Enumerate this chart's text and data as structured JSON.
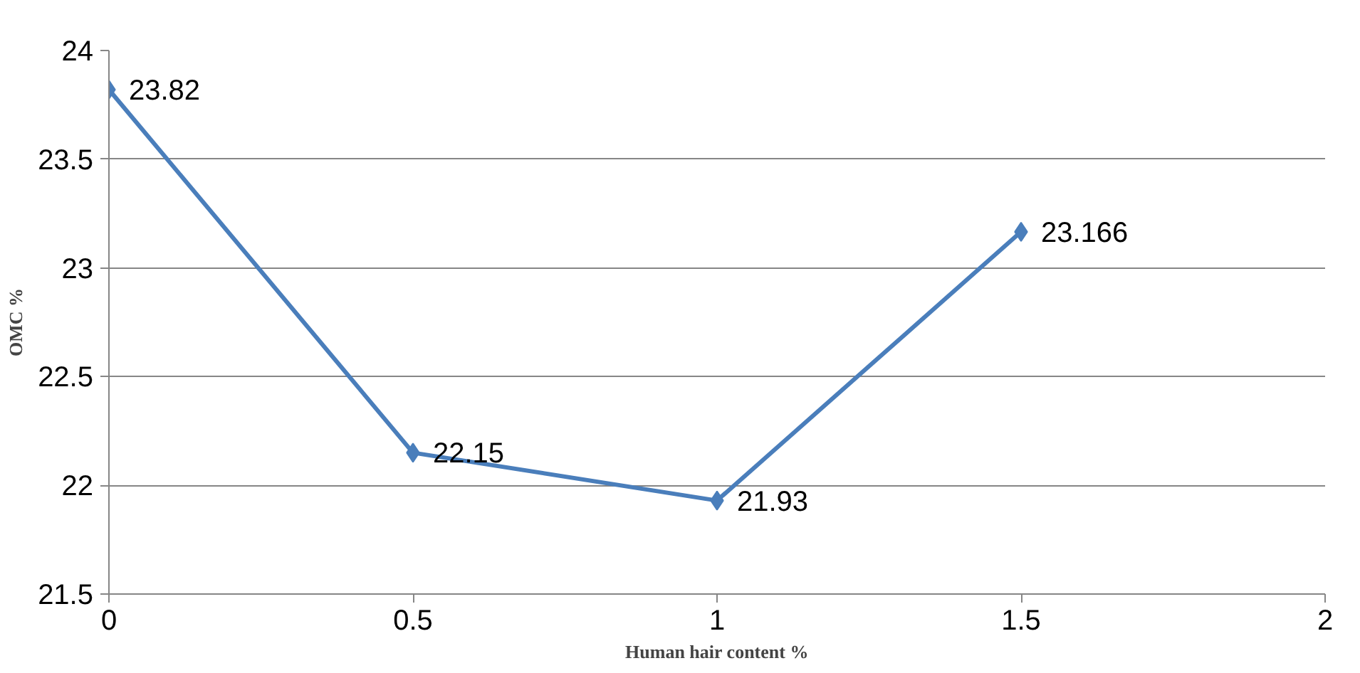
{
  "chart_data": {
    "type": "line",
    "xlabel": "Human hair content %",
    "ylabel": "OMC %",
    "x": [
      0,
      0.5,
      1,
      1.5
    ],
    "series": [
      {
        "color": "#4a7ebb",
        "values": [
          23.82,
          22.15,
          21.93,
          23.166
        ]
      }
    ],
    "xlim": [
      0,
      2
    ],
    "xticks": [
      0,
      0.5,
      1,
      1.5,
      2
    ],
    "ylim": [
      21.5,
      24
    ],
    "yticks": [
      21.5,
      22,
      22.5,
      23,
      23.5,
      24
    ],
    "grid": "y",
    "marker": "diamond",
    "line_style": "solid",
    "data_labels": true
  }
}
